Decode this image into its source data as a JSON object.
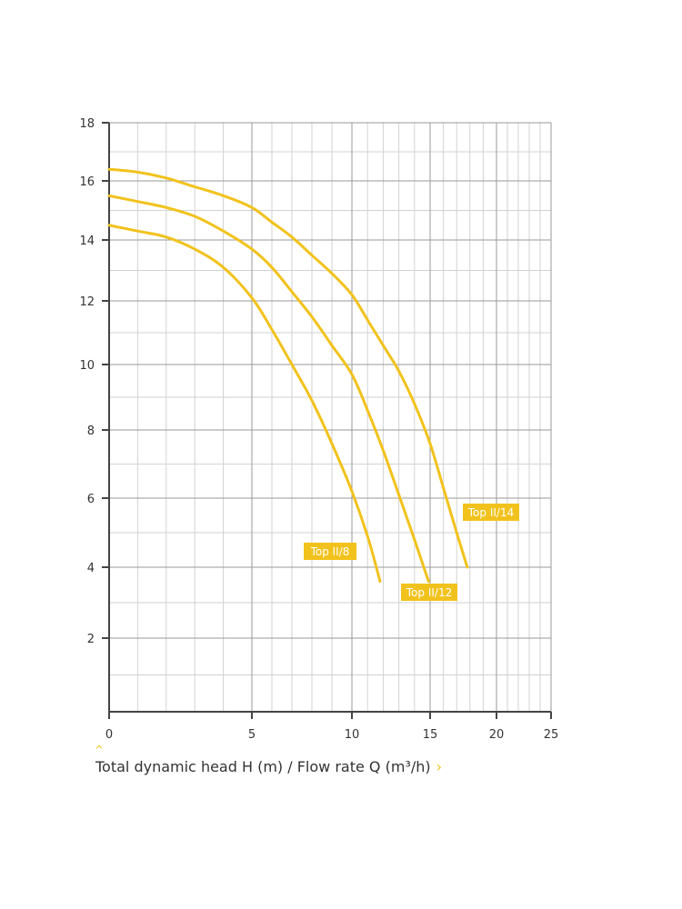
{
  "caption": {
    "text": "Total dynamic head H (m) / Flow rate Q (m³/h)",
    "up_icon": "chevron-up-icon",
    "right_icon": "chevron-right-icon"
  },
  "colors": {
    "curve": "#f2c21c",
    "axis": "#444444",
    "grid_major": "#9a9a9a",
    "grid_minor": "#d2d2d2"
  },
  "chart_data": {
    "type": "line",
    "xlabel": "Total dynamic head H (m) / Flow rate Q (m³/h)",
    "ylabel": "",
    "xscale": "log-like (compressed at higher values)",
    "xlim": [
      0,
      25
    ],
    "ylim": [
      0,
      18
    ],
    "x_ticks": [
      0,
      5,
      10,
      15,
      20,
      25
    ],
    "y_ticks": [
      2,
      4,
      6,
      8,
      10,
      12,
      14,
      16,
      18
    ],
    "grid": true,
    "series": [
      {
        "name": "Top II/8",
        "x": [
          0,
          1,
          2,
          3,
          4,
          5,
          6,
          7,
          8,
          9,
          10,
          11,
          11.8
        ],
        "y": [
          14.5,
          14.3,
          14.1,
          13.7,
          13.1,
          12.1,
          11.1,
          10.0,
          8.9,
          7.6,
          6.2,
          4.9,
          3.6
        ]
      },
      {
        "name": "Top II/12",
        "x": [
          0,
          1,
          2,
          3,
          4,
          5,
          6,
          7,
          8,
          9,
          10,
          11,
          12,
          13,
          14,
          14.9
        ],
        "y": [
          15.5,
          15.3,
          15.1,
          14.8,
          14.3,
          13.7,
          13.1,
          12.3,
          11.5,
          10.6,
          9.7,
          8.6,
          7.4,
          6.1,
          4.8,
          3.6
        ]
      },
      {
        "name": "Top II/14",
        "x": [
          0,
          1,
          2,
          3,
          4,
          5,
          6,
          7,
          8,
          9,
          10,
          11,
          12,
          13,
          14,
          15,
          16,
          17,
          17.8
        ],
        "y": [
          16.4,
          16.3,
          16.1,
          15.8,
          15.5,
          15.1,
          14.6,
          14.1,
          13.5,
          12.9,
          12.2,
          11.4,
          10.6,
          9.8,
          8.8,
          7.6,
          6.3,
          5.0,
          4.0
        ]
      }
    ],
    "labels": [
      "Top II/8",
      "Top II/12",
      "Top II/14"
    ]
  }
}
